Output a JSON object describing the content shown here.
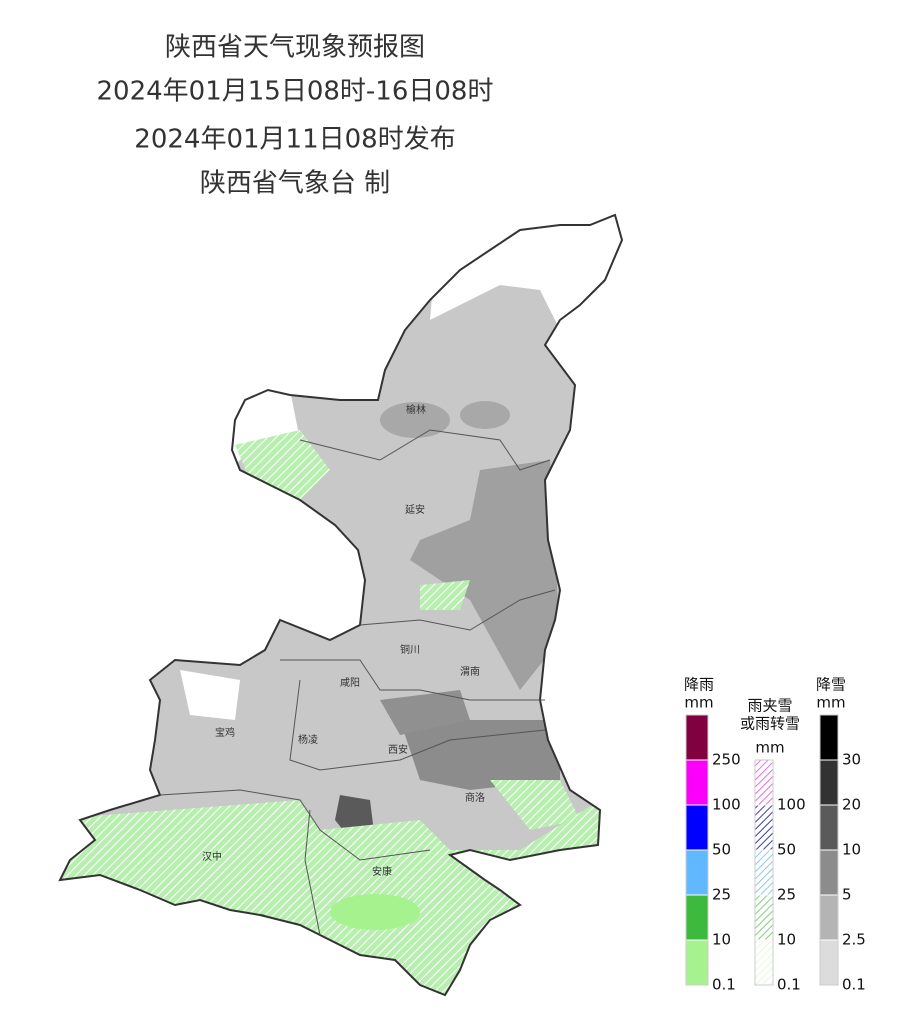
{
  "header": {
    "title": "陕西省天气现象预报图",
    "period": "2024年01月15日08时-16日08时",
    "issued": "2024年01月11日08时发布",
    "issuer": "陕西省气象台 制"
  },
  "map": {
    "cities": [
      "榆林",
      "延安",
      "铜川",
      "渭南",
      "咸阳",
      "宝鸡",
      "杨凌",
      "西安",
      "商洛",
      "汉中",
      "安康"
    ]
  },
  "legends": [
    {
      "title": [
        "降雨"
      ],
      "unit": "mm",
      "levels": [
        0.1,
        10,
        25,
        50,
        100,
        250
      ],
      "colors": [
        "#a6f28f",
        "#3dba3d",
        "#61b8ff",
        "#0000ff",
        "#fa00fa",
        "#800040"
      ],
      "pattern": "solid"
    },
    {
      "title": [
        "雨夹雪",
        "或雨转雪"
      ],
      "unit": "mm",
      "levels": [
        0.1,
        10,
        25,
        50,
        100
      ],
      "colors": [
        "#e8f8e0",
        "#7fd07a",
        "#8ec8e8",
        "#3c3cb4",
        "#e070e0"
      ],
      "pattern": "hatched"
    },
    {
      "title": [
        "降雪"
      ],
      "unit": "mm",
      "levels": [
        0.1,
        2.5,
        5,
        10,
        20,
        30
      ],
      "colors": [
        "#dcdcdc",
        "#b4b4b4",
        "#8c8c8c",
        "#5a5a5a",
        "#323232",
        "#000000"
      ],
      "pattern": "solid"
    }
  ]
}
